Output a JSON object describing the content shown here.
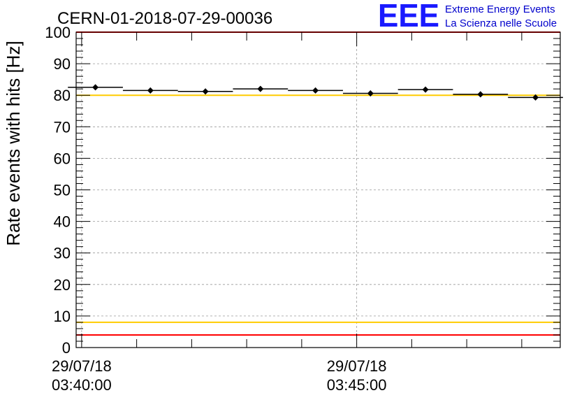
{
  "header": {
    "run_title": "CERN-01-2018-07-29-00036",
    "logo_text": "EEE",
    "tagline_1": "Extreme Energy Events",
    "tagline_2": "La Scienza nelle Scuole"
  },
  "colors": {
    "logo": "#1a1aff",
    "tagline": "#0000cc",
    "red_limit": "#ff0000",
    "yellow_limit": "#ffcc00",
    "grid": "#999999",
    "marker": "#000000"
  },
  "chart_data": {
    "type": "scatter",
    "title": "CERN-01-2018-07-29-00036",
    "ylabel": "Rate events with hits [Hz]",
    "xlabel": "",
    "ylim": [
      0,
      100
    ],
    "xlim_minutes": [
      -0.1,
      8.7
    ],
    "y_ticks": [
      "0",
      "10",
      "20",
      "30",
      "40",
      "50",
      "60",
      "70",
      "80",
      "90",
      "100"
    ],
    "x_ticks": [
      {
        "minute": 0,
        "date": "29/07/18",
        "time": "03:40:00"
      },
      {
        "minute": 5,
        "date": "29/07/18",
        "time": "03:45:00"
      }
    ],
    "grid": true,
    "bin_width_minutes": 1,
    "series": [
      {
        "name": "Rate events with hits",
        "x_minutes": [
          0.25,
          1.25,
          2.25,
          3.25,
          4.25,
          5.25,
          6.25,
          7.25,
          8.25
        ],
        "values": [
          82.5,
          81.5,
          81.2,
          82.0,
          81.5,
          80.6,
          81.8,
          80.3,
          79.3
        ],
        "errors": [
          0.9,
          0.9,
          0.9,
          0.9,
          0.9,
          0.9,
          0.9,
          0.9,
          0.9
        ]
      }
    ],
    "reference_lines": [
      {
        "name": "upper-red-limit",
        "value": 100,
        "color": "#ff0000"
      },
      {
        "name": "upper-yellow-limit",
        "value": 80,
        "color": "#ffcc00"
      },
      {
        "name": "lower-yellow-limit",
        "value": 8,
        "color": "#ffcc00"
      },
      {
        "name": "lower-red-limit",
        "value": 4,
        "color": "#ff0000"
      }
    ]
  }
}
